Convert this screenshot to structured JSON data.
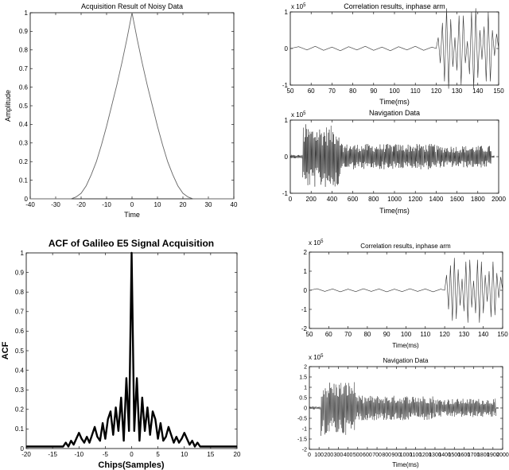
{
  "chart_data": [
    {
      "id": "acq-noisy",
      "type": "line",
      "title": "Acquisition Result of Noisy Data",
      "xlabel": "Time",
      "ylabel": "Amplitude",
      "xlim": [
        -40,
        40
      ],
      "ylim": [
        0,
        1
      ],
      "xticks": [
        -40,
        -30,
        -20,
        -10,
        0,
        10,
        20,
        30,
        40
      ],
      "yticks": [
        0,
        0.1,
        0.2,
        0.3,
        0.4,
        0.5,
        0.6,
        0.7,
        0.8,
        0.9,
        1
      ],
      "series": [
        {
          "x": [
            -40,
            -24,
            -22,
            -20,
            -18,
            -16,
            -14,
            -12,
            -10,
            -8,
            -6,
            -4,
            -2,
            -1,
            0,
            1,
            2,
            4,
            6,
            8,
            10,
            12,
            14,
            16,
            18,
            20,
            22,
            24,
            40
          ],
          "values": [
            0,
            0,
            0.01,
            0.03,
            0.07,
            0.13,
            0.2,
            0.29,
            0.39,
            0.5,
            0.61,
            0.73,
            0.86,
            0.93,
            1,
            0.93,
            0.86,
            0.73,
            0.61,
            0.5,
            0.39,
            0.29,
            0.2,
            0.13,
            0.07,
            0.03,
            0.01,
            0,
            0
          ]
        }
      ]
    },
    {
      "id": "corr-top",
      "type": "line",
      "title": "Correlation results, inphase arm",
      "xlabel": "Time(ms)",
      "ylabel": "",
      "exponent": "x 10",
      "exponent_power": "5",
      "xlim": [
        50,
        150
      ],
      "ylim": [
        -1,
        1
      ],
      "xticks": [
        50,
        60,
        70,
        80,
        90,
        100,
        110,
        120,
        130,
        140,
        150
      ],
      "yticks": [
        -1,
        0,
        1
      ],
      "series": [
        {
          "x": [
            50,
            54,
            58,
            62,
            66,
            70,
            74,
            78,
            82,
            86,
            90,
            94,
            98,
            102,
            106,
            110,
            114,
            118,
            120,
            121,
            122,
            123,
            124,
            125,
            126,
            127,
            128,
            129,
            130,
            131,
            132,
            133,
            134,
            135,
            136,
            137,
            138,
            139,
            140,
            141,
            142,
            143,
            144,
            145,
            146,
            147,
            148,
            149,
            150
          ],
          "values": [
            0,
            0.05,
            -0.04,
            0.06,
            -0.05,
            0.04,
            -0.06,
            0.05,
            -0.04,
            0.06,
            -0.05,
            0.04,
            -0.06,
            0.05,
            -0.04,
            0.06,
            -0.05,
            0.04,
            0,
            0.3,
            -0.4,
            0.7,
            -0.9,
            1.1,
            -1.1,
            0.8,
            -0.5,
            0.3,
            -0.6,
            0.9,
            -1.0,
            0.9,
            -0.4,
            0.2,
            -0.7,
            1.0,
            -1.1,
            1.1,
            -0.8,
            0.5,
            -0.3,
            0.6,
            -0.9,
            1.0,
            -0.9,
            0.5,
            -0.2,
            0.4,
            0
          ]
        }
      ]
    },
    {
      "id": "nav-top",
      "type": "line",
      "title": "Navigation Data",
      "xlabel": "Time(ms)",
      "ylabel": "",
      "exponent": "x 10",
      "exponent_power": "5",
      "xlim": [
        0,
        2000
      ],
      "ylim": [
        -1,
        1
      ],
      "xticks": [
        0,
        200,
        400,
        600,
        800,
        1000,
        1200,
        1400,
        1600,
        1800,
        2000
      ],
      "yticks": [
        -1,
        0,
        1
      ],
      "envelope": [
        {
          "x": [
            0,
            120
          ],
          "amp": 0.05
        },
        {
          "x": [
            120,
            160
          ],
          "amp": 0.9
        },
        {
          "x": [
            160,
            480
          ],
          "amp": 0.85
        },
        {
          "x": [
            480,
            1400
          ],
          "amp": 0.35
        },
        {
          "x": [
            1400,
            1930
          ],
          "amp": 0.3
        },
        {
          "x": [
            1930,
            1960
          ],
          "amp": 0.03
        }
      ]
    },
    {
      "id": "acf-e5",
      "type": "line",
      "title": "ACF of Galileo E5 Signal Acquisition",
      "xlabel": "Chips(Samples)",
      "ylabel": "ACF",
      "xlim": [
        -20,
        20
      ],
      "ylim": [
        0,
        1
      ],
      "xticks": [
        -20,
        -15,
        -10,
        -5,
        0,
        5,
        10,
        15,
        20
      ],
      "yticks": [
        0,
        0.1,
        0.2,
        0.3,
        0.4,
        0.5,
        0.6,
        0.7,
        0.8,
        0.9,
        1
      ],
      "series": [
        {
          "x": [
            -20,
            -13,
            -12.5,
            -12,
            -11.5,
            -11,
            -10.5,
            -10,
            -9.5,
            -9,
            -8.5,
            -8,
            -7.5,
            -7,
            -6.5,
            -6,
            -5.5,
            -5,
            -4.5,
            -4,
            -3.5,
            -3,
            -2.5,
            -2,
            -1.5,
            -1,
            -0.5,
            0,
            0.5,
            1,
            1.5,
            2,
            2.5,
            3,
            3.5,
            4,
            4.5,
            5,
            5.5,
            6,
            6.5,
            7,
            7.5,
            8,
            8.5,
            9,
            9.5,
            10,
            10.5,
            11,
            11.5,
            12,
            12.5,
            13,
            20
          ],
          "values": [
            0.01,
            0.01,
            0.03,
            0.01,
            0.04,
            0.02,
            0.05,
            0.08,
            0.05,
            0.03,
            0.06,
            0.03,
            0.07,
            0.11,
            0.06,
            0.04,
            0.13,
            0.05,
            0.15,
            0.19,
            0.07,
            0.21,
            0.09,
            0.26,
            0.04,
            0.36,
            0.09,
            1.0,
            0.09,
            0.36,
            0.04,
            0.26,
            0.09,
            0.21,
            0.07,
            0.19,
            0.15,
            0.05,
            0.13,
            0.04,
            0.06,
            0.11,
            0.07,
            0.03,
            0.06,
            0.03,
            0.05,
            0.08,
            0.05,
            0.02,
            0.04,
            0.01,
            0.03,
            0.01,
            0.01
          ]
        }
      ]
    },
    {
      "id": "corr-bottom",
      "type": "line",
      "title": "Correlation results, inphase arm",
      "xlabel": "Time(ms)",
      "ylabel": "",
      "exponent": "x 10",
      "exponent_power": "5",
      "xlim": [
        50,
        150
      ],
      "ylim": [
        -2,
        2
      ],
      "xticks": [
        50,
        60,
        70,
        80,
        90,
        100,
        110,
        120,
        130,
        140,
        150
      ],
      "yticks": [
        -2,
        -1,
        0,
        1,
        2
      ],
      "series": [
        {
          "x": [
            50,
            54,
            58,
            62,
            66,
            70,
            74,
            78,
            82,
            86,
            90,
            94,
            98,
            102,
            106,
            110,
            114,
            118,
            120,
            121,
            122,
            123,
            124,
            125,
            126,
            127,
            128,
            129,
            130,
            131,
            132,
            133,
            134,
            135,
            136,
            137,
            138,
            139,
            140,
            141,
            142,
            143,
            144,
            145,
            146,
            147,
            148,
            149,
            150
          ],
          "values": [
            0,
            0.08,
            -0.06,
            0.07,
            -0.08,
            0.06,
            -0.07,
            0.08,
            -0.06,
            0.07,
            -0.08,
            0.06,
            -0.07,
            0.08,
            -0.06,
            0.07,
            -0.08,
            0.06,
            0,
            0.8,
            -1.0,
            1.3,
            -1.6,
            1.7,
            -1.5,
            1.1,
            -0.8,
            0.6,
            -1.1,
            1.5,
            -1.7,
            1.6,
            -0.9,
            0.5,
            -1.2,
            1.6,
            -1.7,
            1.5,
            -1.2,
            0.8,
            -0.6,
            1.0,
            -1.4,
            1.5,
            -1.3,
            0.9,
            -0.4,
            0.7,
            0
          ]
        }
      ]
    },
    {
      "id": "nav-bottom",
      "type": "line",
      "title": "Navigation Data",
      "xlabel": "Time(ms)",
      "ylabel": "",
      "exponent": "x 10",
      "exponent_power": "5",
      "xlim": [
        0,
        2000
      ],
      "ylim": [
        -2,
        2
      ],
      "xticks": [
        0,
        100,
        200,
        300,
        400,
        500,
        600,
        700,
        800,
        900,
        1000,
        1100,
        1200,
        1300,
        1400,
        1500,
        1600,
        1700,
        1800,
        1900,
        2000
      ],
      "yticks": [
        -2,
        -1.5,
        -1,
        -0.5,
        0,
        0.5,
        1,
        1.5,
        2
      ],
      "envelope": [
        {
          "x": [
            0,
            120
          ],
          "amp": 0.08
        },
        {
          "x": [
            120,
            160
          ],
          "amp": 1.5
        },
        {
          "x": [
            160,
            480
          ],
          "amp": 1.3
        },
        {
          "x": [
            480,
            1300
          ],
          "amp": 0.6
        },
        {
          "x": [
            1300,
            1930
          ],
          "amp": 0.45
        },
        {
          "x": [
            1930,
            1960
          ],
          "amp": 0.04
        }
      ]
    }
  ]
}
